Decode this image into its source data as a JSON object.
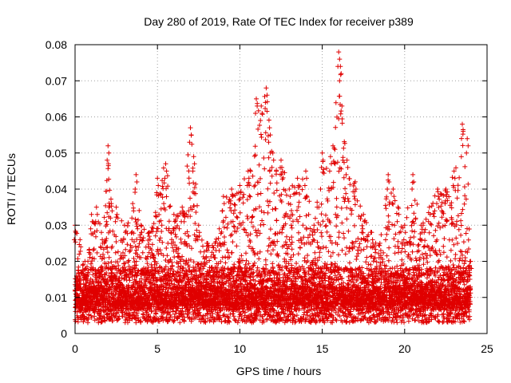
{
  "chart_data": {
    "type": "scatter",
    "title": "Day 280 of 2019, Rate Of TEC Index for receiver p389",
    "xlabel": "GPS time / hours",
    "ylabel": "ROTI / TECUs",
    "xlim": [
      0,
      25
    ],
    "ylim": [
      0,
      0.08
    ],
    "x_ticks": [
      "0",
      "5",
      "10",
      "15",
      "20",
      "25"
    ],
    "y_ticks": [
      "0",
      "0.01",
      "0.02",
      "0.03",
      "0.04",
      "0.05",
      "0.06",
      "0.07",
      "0.08"
    ],
    "x_tick_values": [
      0,
      5,
      10,
      15,
      20,
      25
    ],
    "y_tick_values": [
      0,
      0.01,
      0.02,
      0.03,
      0.04,
      0.05,
      0.06,
      0.07,
      0.08
    ],
    "grid": true,
    "marker": "+",
    "marker_color": "#e00000",
    "series": [
      {
        "name": "ROTI",
        "envelope_x": [
          0,
          0.3,
          0.6,
          1.0,
          1.3,
          1.6,
          2.0,
          2.2,
          2.5,
          3.0,
          3.5,
          3.7,
          4.0,
          4.5,
          5.0,
          5.5,
          6.0,
          6.5,
          7.0,
          7.2,
          7.5,
          8.0,
          8.5,
          9.0,
          9.5,
          10.0,
          10.5,
          11.0,
          11.3,
          11.6,
          11.8,
          12.0,
          12.5,
          13.0,
          13.5,
          14.0,
          14.5,
          15.0,
          15.5,
          16.0,
          16.1,
          16.5,
          17.0,
          17.5,
          18.0,
          18.5,
          19.0,
          19.3,
          19.6,
          20.0,
          20.5,
          21.0,
          21.5,
          22.0,
          22.5,
          23.0,
          23.5,
          23.8,
          24.0
        ],
        "envelope_y": [
          0.03,
          0.026,
          0.02,
          0.033,
          0.035,
          0.028,
          0.052,
          0.036,
          0.035,
          0.03,
          0.036,
          0.044,
          0.03,
          0.028,
          0.043,
          0.047,
          0.033,
          0.035,
          0.057,
          0.049,
          0.03,
          0.025,
          0.025,
          0.038,
          0.04,
          0.041,
          0.045,
          0.065,
          0.063,
          0.068,
          0.057,
          0.05,
          0.048,
          0.04,
          0.043,
          0.045,
          0.03,
          0.05,
          0.049,
          0.078,
          0.074,
          0.048,
          0.042,
          0.033,
          0.028,
          0.025,
          0.044,
          0.04,
          0.035,
          0.03,
          0.044,
          0.03,
          0.035,
          0.04,
          0.04,
          0.045,
          0.058,
          0.054,
          0.02
        ],
        "baseline": 0.008
      }
    ]
  }
}
